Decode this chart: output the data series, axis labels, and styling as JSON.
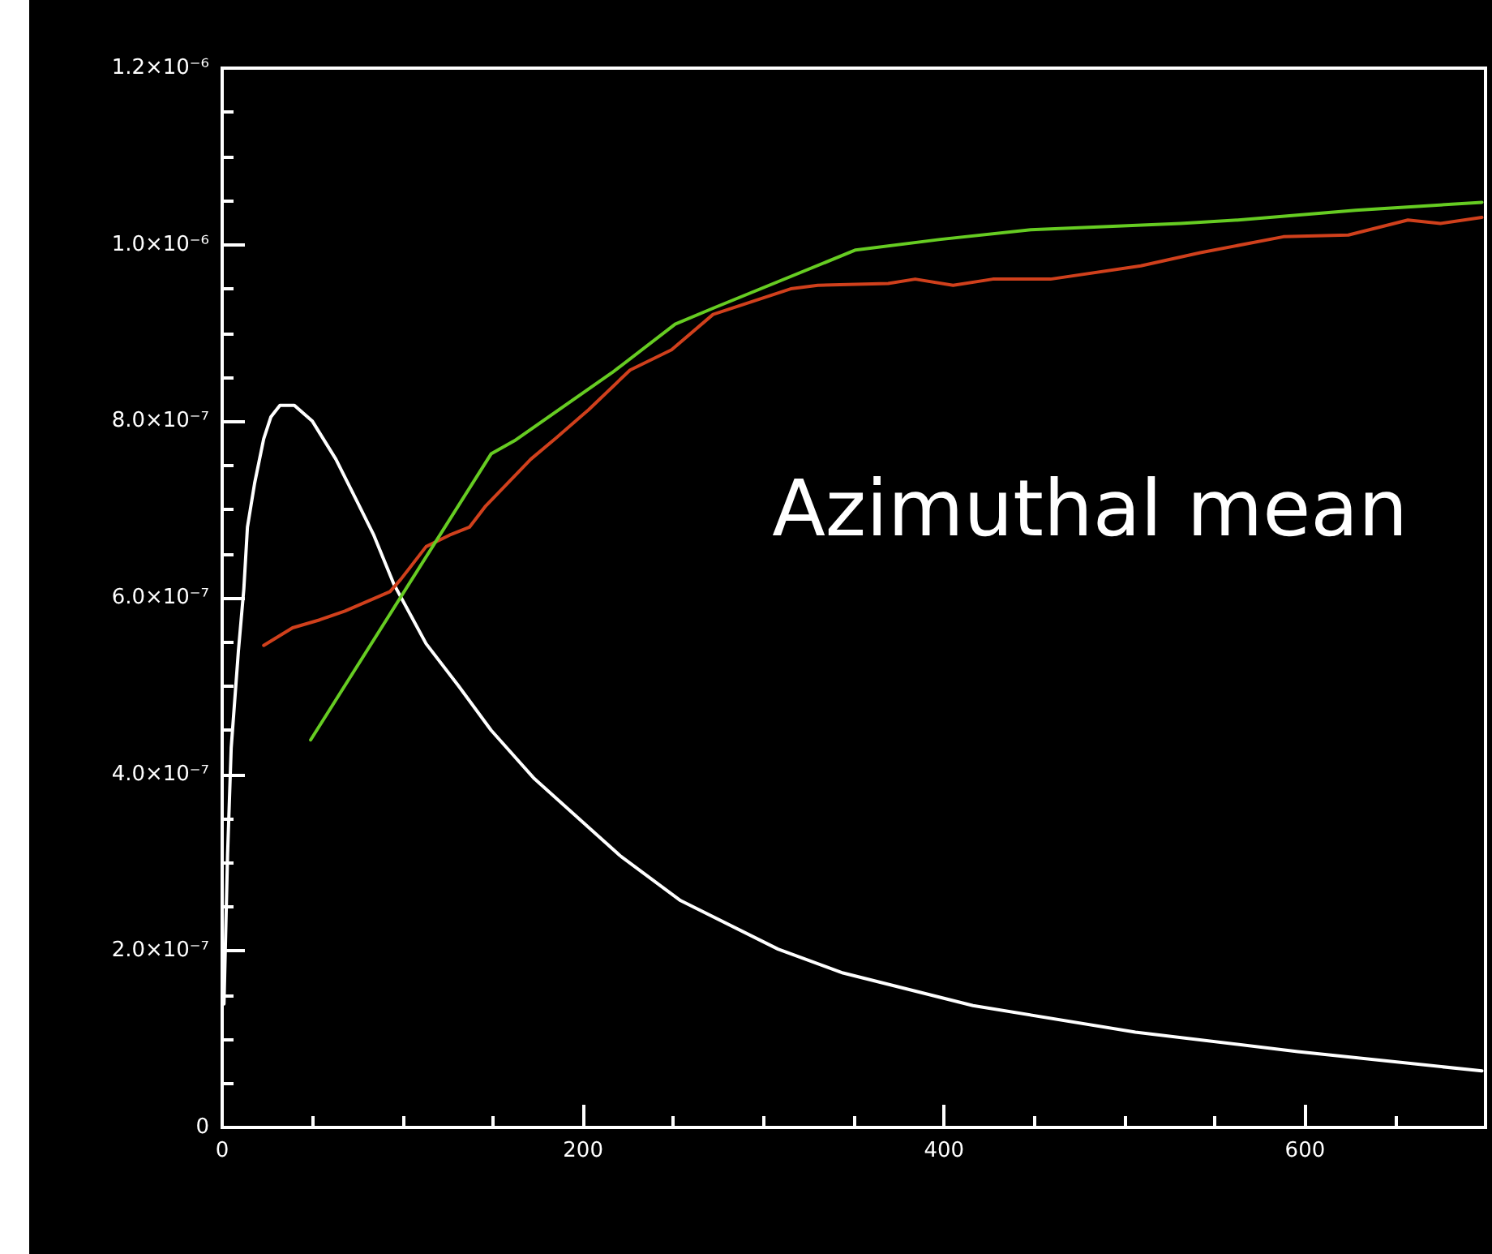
{
  "chart_data": {
    "type": "line",
    "annotations": [
      "Azimuthal mean"
    ],
    "xlim": [
      0,
      700
    ],
    "xticks": [
      0,
      200,
      400,
      600
    ],
    "ylim": [
      0,
      1.2e-06
    ],
    "yticks": [
      {
        "value": 0,
        "label": "0"
      },
      {
        "value": 2e-07,
        "label": "2.0×10⁻⁷"
      },
      {
        "value": 4e-07,
        "label": "4.0×10⁻⁷"
      },
      {
        "value": 6e-07,
        "label": "6.0×10⁻⁷"
      },
      {
        "value": 8e-07,
        "label": "8.0×10⁻⁷"
      },
      {
        "value": 1e-06,
        "label": "1.0×10⁻⁶"
      },
      {
        "value": 1.2e-06,
        "label": "1.2×10⁻⁶"
      }
    ],
    "grid": false,
    "marker": "none",
    "line_style": "solid",
    "series": [
      {
        "color": "#ffffff",
        "x": [
          1,
          3,
          5,
          9,
          12,
          14,
          18,
          23,
          27,
          32,
          40,
          50,
          63,
          75,
          84,
          95,
          113,
          131,
          149,
          173,
          203,
          221,
          254,
          308,
          344,
          416,
          506,
          596,
          698
        ],
        "values": [
          1.4e-07,
          3.1e-07,
          4.3e-07,
          5.4e-07,
          6.1e-07,
          6.8e-07,
          7.3e-07,
          7.8e-07,
          8.05e-07,
          8.18e-07,
          8.18e-07,
          8e-07,
          7.57e-07,
          7.08e-07,
          6.71e-07,
          6.16e-07,
          5.48e-07,
          5e-07,
          4.5e-07,
          3.95e-07,
          3.4e-07,
          3.07e-07,
          2.57e-07,
          2.02e-07,
          1.75e-07,
          1.38e-07,
          1.08e-07,
          8.6e-08,
          6.4e-08
        ]
      },
      {
        "color": "#d0401c",
        "x": [
          23,
          39,
          54,
          68,
          93,
          99,
          113,
          126,
          137,
          146,
          171,
          185,
          203,
          226,
          249,
          272,
          315,
          330,
          369,
          384,
          405,
          427,
          459,
          509,
          542,
          588,
          624,
          657,
          675,
          698
        ],
        "values": [
          5.46e-07,
          5.66e-07,
          5.75e-07,
          5.85e-07,
          6.07e-07,
          6.21e-07,
          6.58e-07,
          6.71e-07,
          6.8e-07,
          7.04e-07,
          7.57e-07,
          7.81e-07,
          8.13e-07,
          8.58e-07,
          8.81e-07,
          9.21e-07,
          9.5e-07,
          9.54e-07,
          9.56e-07,
          9.61e-07,
          9.54e-07,
          9.61e-07,
          9.61e-07,
          9.76e-07,
          9.91e-07,
          1.009e-06,
          1.011e-06,
          1.028e-06,
          1.024e-06,
          1.031e-06
        ]
      },
      {
        "color": "#66cc22",
        "x": [
          49,
          149,
          162,
          216,
          251,
          272,
          351,
          398,
          448,
          531,
          563,
          628,
          698
        ],
        "values": [
          4.39e-07,
          7.63e-07,
          7.78e-07,
          8.55e-07,
          9.1e-07,
          9.28e-07,
          9.94e-07,
          1.006e-06,
          1.017e-06,
          1.024e-06,
          1.028e-06,
          1.039e-06,
          1.048e-06
        ]
      }
    ]
  }
}
